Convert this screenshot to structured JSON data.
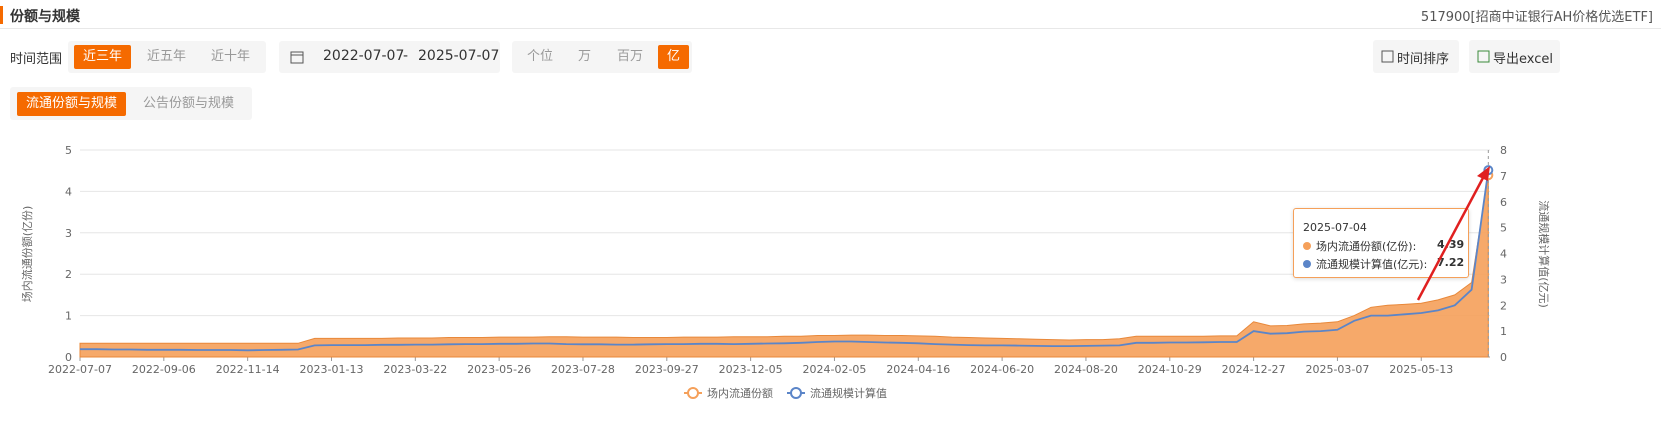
{
  "header": {
    "title": "份额与规模",
    "fund": "517900[招商中证银行AH价格优选ETF]"
  },
  "toolbar": {
    "range_label": "时间范围",
    "ranges": [
      "近三年",
      "近五年",
      "近十年"
    ],
    "start_date": "2022-07-07",
    "date_sep": "-",
    "end_date": "2025-07-07",
    "units": [
      "个位",
      "万",
      "百万",
      "亿"
    ],
    "sort": "时间排序",
    "export": "导出excel"
  },
  "tabs": [
    "流通份额与规模",
    "公告份额与规模"
  ],
  "chart_data": {
    "type": "area-line",
    "y_label": "场内流通份额(亿份)",
    "y2_label": "流通规模计算值(亿元)",
    "categories": [
      "2022-07-07",
      null,
      null,
      null,
      null,
      "2022-09-06",
      null,
      null,
      null,
      null,
      "2022-11-14",
      null,
      null,
      null,
      null,
      "2023-01-13",
      null,
      null,
      null,
      null,
      "2023-03-22",
      null,
      null,
      null,
      null,
      "2023-05-26",
      null,
      null,
      null,
      null,
      "2023-07-28",
      null,
      null,
      null,
      null,
      "2023-09-27",
      null,
      null,
      null,
      null,
      "2023-12-05",
      null,
      null,
      null,
      null,
      "2024-02-05",
      null,
      null,
      null,
      null,
      "2024-04-16",
      null,
      null,
      null,
      null,
      "2024-06-20",
      null,
      null,
      null,
      null,
      "2024-08-20",
      null,
      null,
      null,
      null,
      "2024-10-29",
      null,
      null,
      null,
      null,
      "2024-12-27",
      null,
      null,
      null,
      null,
      "2025-03-07",
      null,
      null,
      null,
      null,
      "2025-05-13",
      null,
      null,
      null,
      null
    ],
    "series": [
      {
        "name": "场内流通份额",
        "color": "#f5a05a",
        "values": [
          0.33,
          0.33,
          0.33,
          0.33,
          0.33,
          0.33,
          0.33,
          0.33,
          0.33,
          0.33,
          0.33,
          0.33,
          0.33,
          0.33,
          0.45,
          0.45,
          0.45,
          0.45,
          0.45,
          0.46,
          0.46,
          0.46,
          0.47,
          0.47,
          0.47,
          0.48,
          0.48,
          0.48,
          0.49,
          0.49,
          0.48,
          0.48,
          0.48,
          0.47,
          0.47,
          0.47,
          0.48,
          0.48,
          0.48,
          0.49,
          0.49,
          0.49,
          0.5,
          0.5,
          0.52,
          0.52,
          0.53,
          0.53,
          0.52,
          0.52,
          0.51,
          0.5,
          0.48,
          0.47,
          0.46,
          0.45,
          0.44,
          0.43,
          0.42,
          0.41,
          0.42,
          0.42,
          0.44,
          0.5,
          0.5,
          0.5,
          0.5,
          0.5,
          0.51,
          0.51,
          0.85,
          0.75,
          0.76,
          0.8,
          0.82,
          0.85,
          1.0,
          1.2,
          1.25,
          1.27,
          1.3,
          1.38,
          1.5,
          1.8,
          4.39
        ]
      },
      {
        "name": "流通规模计算值",
        "color": "#5b85c8",
        "axis": "y2",
        "values": [
          0.3,
          0.3,
          0.29,
          0.29,
          0.28,
          0.28,
          0.28,
          0.27,
          0.27,
          0.27,
          0.26,
          0.27,
          0.28,
          0.29,
          0.45,
          0.46,
          0.46,
          0.46,
          0.47,
          0.47,
          0.48,
          0.48,
          0.49,
          0.5,
          0.5,
          0.51,
          0.51,
          0.52,
          0.52,
          0.5,
          0.49,
          0.49,
          0.48,
          0.48,
          0.49,
          0.5,
          0.5,
          0.51,
          0.51,
          0.5,
          0.51,
          0.52,
          0.53,
          0.55,
          0.58,
          0.6,
          0.6,
          0.58,
          0.56,
          0.55,
          0.53,
          0.5,
          0.48,
          0.46,
          0.45,
          0.45,
          0.44,
          0.43,
          0.42,
          0.42,
          0.43,
          0.44,
          0.45,
          0.55,
          0.55,
          0.56,
          0.56,
          0.57,
          0.58,
          0.58,
          1.0,
          0.9,
          0.92,
          0.98,
          1.0,
          1.05,
          1.4,
          1.6,
          1.6,
          1.65,
          1.7,
          1.8,
          2.0,
          2.6,
          7.22
        ]
      }
    ],
    "ylim": [
      0,
      5
    ],
    "yticks": [
      0,
      1,
      2,
      3,
      4,
      5
    ],
    "y2lim": [
      0,
      8
    ],
    "y2ticks": [
      0,
      1,
      2,
      3,
      4,
      5,
      6,
      7,
      8
    ],
    "grid": true,
    "tooltip": {
      "date": "2025-07-04",
      "labels": [
        "场内流通份额(亿份):",
        "流通规模计算值(亿元):"
      ]
    }
  }
}
